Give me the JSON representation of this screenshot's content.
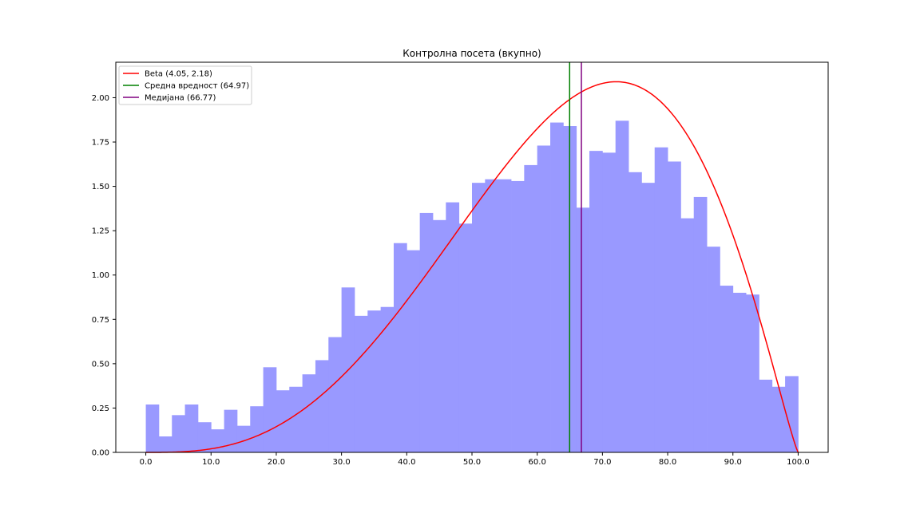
{
  "chart_data": {
    "type": "bar",
    "title": "Контролна посета (вкупно)",
    "xlabel": "",
    "ylabel": "",
    "xlim": [
      -4.6,
      104.6
    ],
    "ylim": [
      0,
      2.2
    ],
    "grid": false,
    "legend_position": "top-left",
    "xticks": [
      0,
      10,
      20,
      30,
      40,
      50,
      60,
      70,
      80,
      90,
      100
    ],
    "xtick_labels": [
      "0.0",
      "10.0",
      "20.0",
      "30.0",
      "40.0",
      "50.0",
      "60.0",
      "70.0",
      "80.0",
      "90.0",
      "100.0"
    ],
    "yticks": [
      0,
      0.25,
      0.5,
      0.75,
      1.0,
      1.25,
      1.5,
      1.75,
      2.0
    ],
    "ytick_labels": [
      "0.00",
      "0.25",
      "0.50",
      "0.75",
      "1.00",
      "1.25",
      "1.50",
      "1.75",
      "2.00"
    ],
    "histogram": {
      "color": "#9999ff",
      "bin_start": 0,
      "bin_width": 2,
      "values": [
        0.27,
        0.09,
        0.21,
        0.27,
        0.17,
        0.13,
        0.24,
        0.15,
        0.26,
        0.48,
        0.35,
        0.37,
        0.44,
        0.52,
        0.65,
        0.93,
        0.77,
        0.8,
        0.82,
        1.18,
        1.14,
        1.35,
        1.31,
        1.41,
        1.29,
        1.52,
        1.54,
        1.54,
        1.53,
        1.62,
        1.73,
        1.86,
        1.84,
        1.38,
        1.7,
        1.69,
        1.87,
        1.58,
        1.52,
        1.72,
        1.64,
        1.32,
        1.44,
        1.16,
        0.94,
        0.9,
        0.89,
        0.41,
        0.37,
        0.43
      ]
    },
    "series": [
      {
        "name": "Beta (4.05, 2.18)",
        "type": "line",
        "color": "#ff0000",
        "alpha": 4.05,
        "beta": 2.18,
        "peak_x": 72.2,
        "peak_y": 2.09,
        "x_range": [
          0,
          100
        ]
      },
      {
        "name": "Средна вредност (64.97)",
        "type": "vline",
        "color": "#008000",
        "x": 64.97
      },
      {
        "name": "Медијана (66.77)",
        "type": "vline",
        "color": "#800080",
        "x": 66.77
      }
    ]
  }
}
